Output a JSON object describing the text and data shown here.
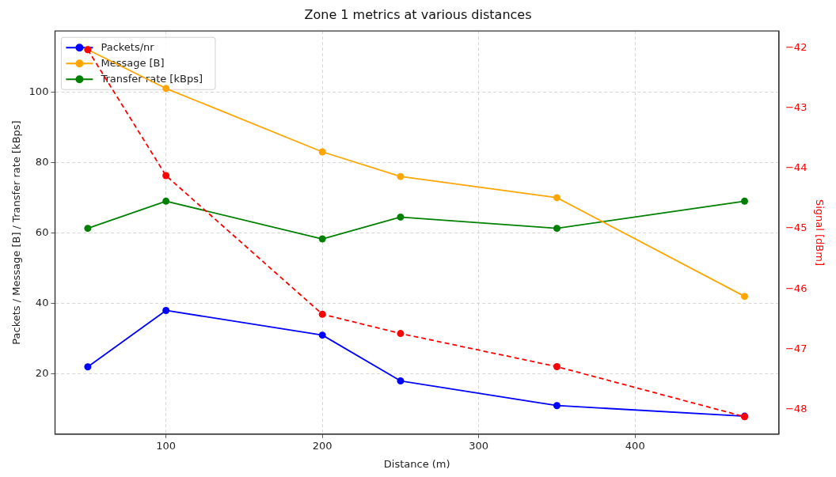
{
  "chart_data": {
    "type": "line",
    "title": "Zone 1 metrics at various distances",
    "xlabel": "Distance (m)",
    "ylabel": "Packets / Message [B] / Transfer rate [kBps]",
    "y2label": "Signal [dBm]",
    "x": [
      50,
      100,
      200,
      250,
      350,
      470
    ],
    "xlim": [
      29,
      492
    ],
    "xticks": [
      100,
      200,
      300,
      400
    ],
    "ylim": [
      2.9,
      117.3
    ],
    "yticks": [
      20,
      40,
      60,
      80,
      100
    ],
    "y2lim": [
      -48.41,
      -41.72
    ],
    "y2ticks": [
      {
        "value": -48,
        "label": "−48"
      },
      {
        "value": -47,
        "label": "−47"
      },
      {
        "value": -46,
        "label": "−46"
      },
      {
        "value": -45,
        "label": "−45"
      },
      {
        "value": -44,
        "label": "−44"
      },
      {
        "value": -43,
        "label": "−43"
      },
      {
        "value": -42,
        "label": "−42"
      }
    ],
    "series": [
      {
        "name": "Packets/nr",
        "color": "#0000ff",
        "values": [
          22,
          38,
          31,
          18,
          11,
          8
        ]
      },
      {
        "name": "Message [B]",
        "color": "#ffa500",
        "values": [
          112,
          101,
          83,
          76,
          70,
          42
        ]
      },
      {
        "name": "Transfer rate [kBps]",
        "color": "#008000",
        "values": [
          61.3,
          69,
          58.3,
          64.5,
          61.3,
          69
        ]
      },
      {
        "color": "#ff0000",
        "axis": "y2",
        "line_style": "dashed",
        "values": [
          -42.03,
          -44.12,
          -46.42,
          -46.74,
          -47.29,
          -48.12
        ]
      }
    ],
    "grid": true,
    "legend": "top left",
    "marker": "circle",
    "line_style": "solid"
  }
}
